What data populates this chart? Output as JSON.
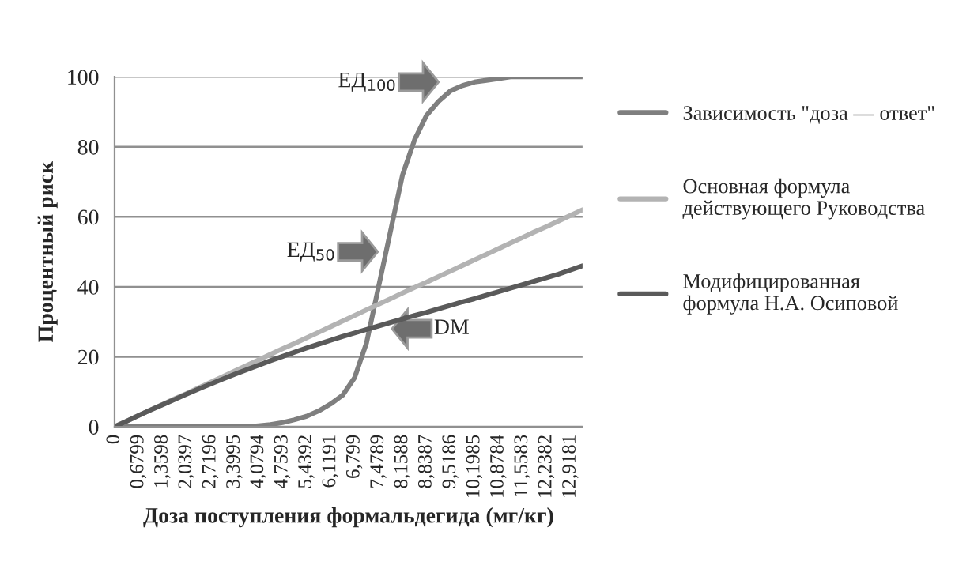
{
  "chart_data": {
    "type": "line",
    "xlabel": "Доза поступления формальдегида (мг/кг)",
    "ylabel": "Процентный риск",
    "categories": [
      "0",
      null,
      "0,6799",
      null,
      "1,3598",
      null,
      "2,0397",
      null,
      "2,7196",
      null,
      "3,3995",
      null,
      "4,0794",
      null,
      "4,7593",
      null,
      "5,4392",
      null,
      "6,1191",
      null,
      "6,799",
      null,
      "7,4789",
      null,
      "8,1588",
      null,
      "8,8387",
      null,
      "9,5186",
      null,
      "10,1985",
      null,
      "10,8784",
      null,
      "11,5583",
      null,
      "12,2382",
      null,
      "12,9181",
      null
    ],
    "series": [
      {
        "name": "Зависимость \"доза — ответ\"",
        "color": "#7f7f7f",
        "values": [
          0,
          0,
          0,
          0,
          0,
          0,
          0,
          0,
          0,
          0,
          0,
          0,
          0.3,
          0.6,
          1.2,
          2,
          3,
          4.5,
          6.5,
          9,
          14,
          24,
          40,
          56,
          72,
          82,
          89,
          93,
          96,
          97.5,
          98.5,
          99,
          99.5,
          100,
          100,
          100,
          100,
          100,
          100,
          100
        ]
      },
      {
        "name": "Основная формула\nдействующего Руководства",
        "color": "#b3b3b3",
        "values": [
          0,
          1.6,
          3.2,
          4.8,
          6.4,
          8,
          9.5,
          11.1,
          12.7,
          14.3,
          15.9,
          17.5,
          19.1,
          20.7,
          22.3,
          23.8,
          25.4,
          27,
          28.6,
          30.2,
          31.8,
          33.4,
          35,
          36.6,
          38.2,
          39.8,
          41.3,
          42.9,
          44.5,
          46.1,
          47.7,
          49.3,
          50.9,
          52.5,
          54.1,
          55.7,
          57.2,
          58.8,
          60.4,
          62
        ]
      },
      {
        "name": "Модифицированная\nформула Н.А. Осиповой",
        "color": "#5a5a5a",
        "values": [
          0,
          1.6,
          3.2,
          4.8,
          6.3,
          7.8,
          9.3,
          10.8,
          12.2,
          13.6,
          15,
          16.3,
          17.6,
          18.9,
          20.1,
          21.3,
          22.5,
          23.6,
          24.7,
          25.8,
          26.8,
          27.8,
          28.8,
          29.8,
          30.8,
          31.8,
          32.7,
          33.7,
          34.7,
          35.7,
          36.6,
          37.6,
          38.6,
          39.6,
          40.6,
          41.6,
          42.6,
          43.6,
          44.8,
          46
        ]
      }
    ],
    "ylim": [
      0,
      100
    ],
    "yticks": [
      0,
      20,
      40,
      60,
      80,
      100
    ],
    "grid": "y",
    "legend": "right",
    "marker": "none",
    "line_style": "solid",
    "annotations": [
      "ЕД$_{100}$",
      "ЕД$_{50}$",
      "DM"
    ]
  }
}
